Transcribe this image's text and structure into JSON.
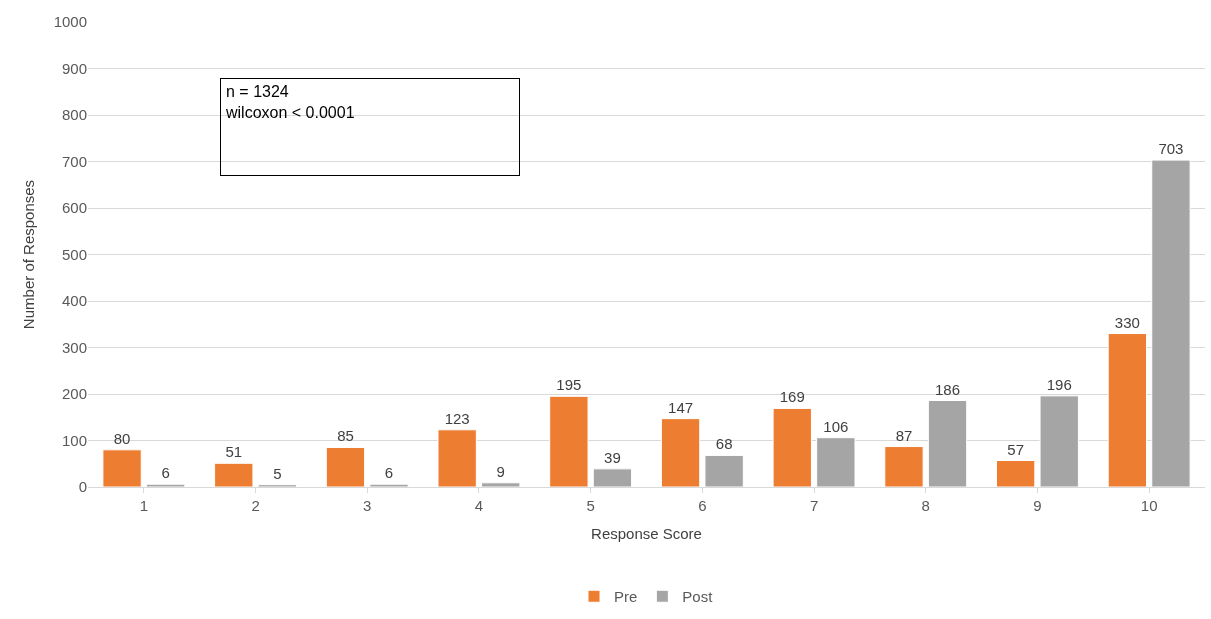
{
  "chart_data": {
    "type": "bar",
    "xlabel": "Response Score",
    "ylabel": "Number of Responses",
    "categories": [
      "1",
      "2",
      "3",
      "4",
      "5",
      "6",
      "7",
      "8",
      "9",
      "10"
    ],
    "series": [
      {
        "name": "Pre",
        "color": "#ed7d31",
        "values": [
          80,
          51,
          85,
          123,
          195,
          147,
          169,
          87,
          57,
          330
        ]
      },
      {
        "name": "Post",
        "color": "#a5a5a5",
        "values": [
          6,
          5,
          6,
          9,
          39,
          68,
          106,
          186,
          196,
          703
        ]
      }
    ],
    "ylim": [
      0,
      1000
    ],
    "yticks": [
      0,
      100,
      200,
      300,
      400,
      500,
      600,
      700,
      800,
      900,
      1000
    ],
    "grid": "y",
    "legend": "bottom",
    "data_labels": true,
    "annotations": [
      "n = 1324\nwilcoxon < 0.0001"
    ]
  }
}
